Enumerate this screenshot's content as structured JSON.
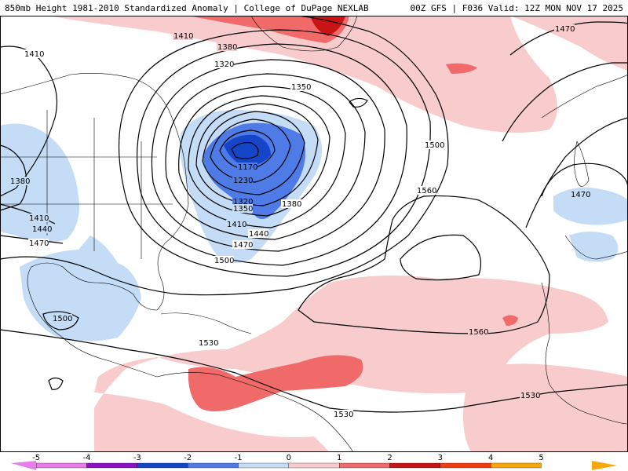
{
  "header": {
    "left": "850mb Height 1981-2010 Standardized Anomaly | College of DuPage NEXLAB",
    "right": "00Z GFS | F036 Valid: 12Z MON NOV 17 2025"
  },
  "colors": {
    "neg5": "#e87ce8",
    "neg4": "#8a12c4",
    "neg3": "#1646c8",
    "neg2": "#4e7be6",
    "neg1": "#c4dcf6",
    "zero": "#ffffff",
    "pos1": "#f8cccc",
    "pos2": "#f06a6a",
    "pos3": "#c81414",
    "pos4": "#f03c10",
    "pos5": "#f8a80c",
    "contour": "#000000",
    "border": "#000000"
  },
  "colorbar": {
    "ticks": [
      "-5",
      "-4",
      "-3",
      "-2",
      "-1",
      "0",
      "1",
      "2",
      "3",
      "4",
      "5"
    ]
  },
  "contour_labels": [
    {
      "text": "1410"
    },
    {
      "text": "1380"
    },
    {
      "text": "1410"
    },
    {
      "text": "1320"
    },
    {
      "text": "1350"
    },
    {
      "text": "1470"
    },
    {
      "text": "1380"
    },
    {
      "text": "1410"
    },
    {
      "text": "1440"
    },
    {
      "text": "1470"
    },
    {
      "text": "1170"
    },
    {
      "text": "1230"
    },
    {
      "text": "1320"
    },
    {
      "text": "1350"
    },
    {
      "text": "1380"
    },
    {
      "text": "1410"
    },
    {
      "text": "1440"
    },
    {
      "text": "1470"
    },
    {
      "text": "1500"
    },
    {
      "text": "1500"
    },
    {
      "text": "1560"
    },
    {
      "text": "1470"
    },
    {
      "text": "1500"
    },
    {
      "text": "1530"
    },
    {
      "text": "1560"
    },
    {
      "text": "1530"
    },
    {
      "text": "1530"
    }
  ]
}
